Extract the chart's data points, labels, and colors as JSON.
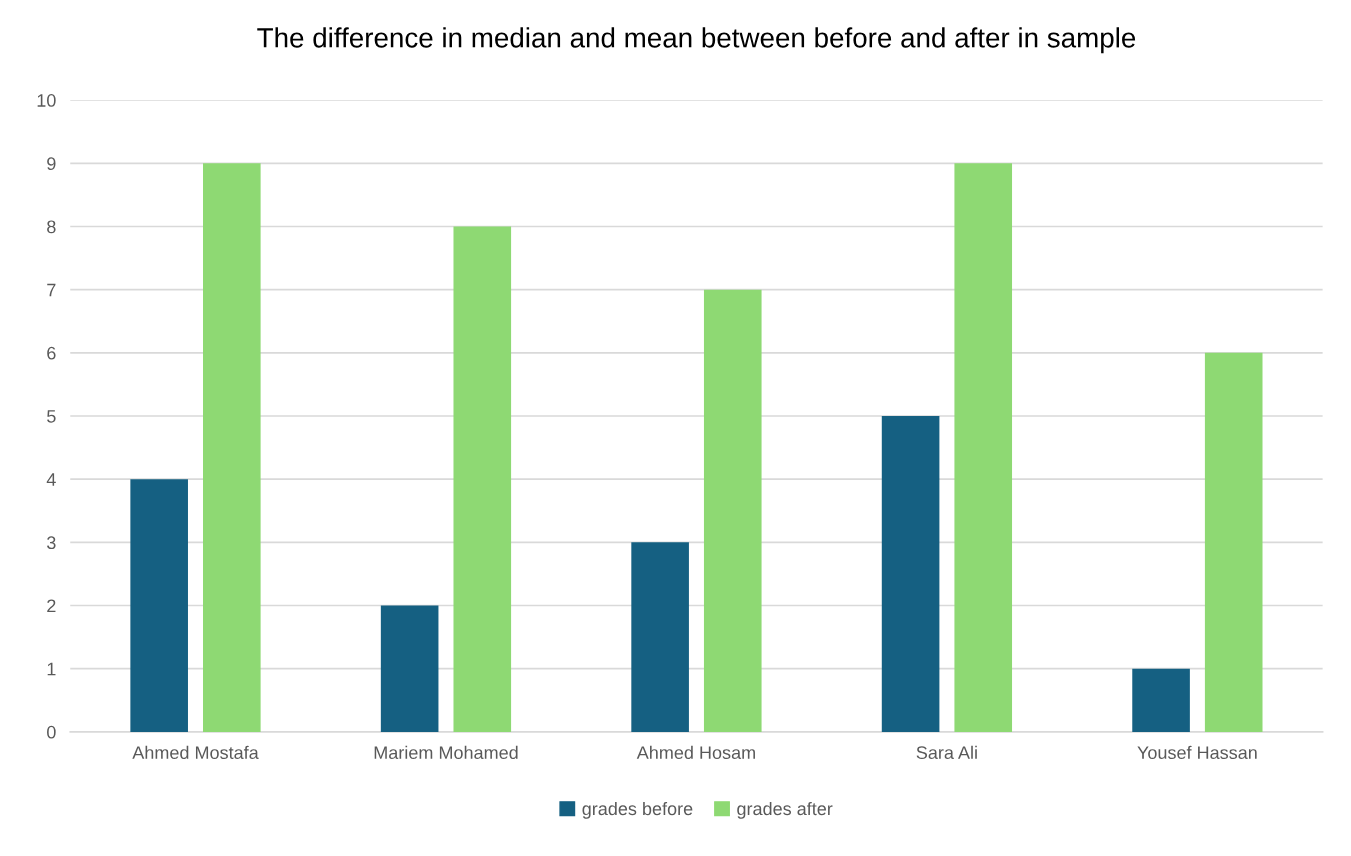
{
  "chart_data": {
    "type": "bar",
    "title": "The difference in median and mean between before and after in sample",
    "categories": [
      "Ahmed Mostafa",
      "Mariem Mohamed",
      "Ahmed Hosam",
      "Sara Ali",
      "Yousef Hassan"
    ],
    "series": [
      {
        "name": "grades before",
        "color": "#156082",
        "values": [
          4,
          2,
          3,
          5,
          1
        ]
      },
      {
        "name": "grades after",
        "color": "#8ed973",
        "values": [
          9,
          8,
          7,
          9,
          6
        ]
      }
    ],
    "ylim": [
      0,
      10
    ],
    "yticks": [
      0,
      1,
      2,
      3,
      4,
      5,
      6,
      7,
      8,
      9,
      10
    ],
    "grid": "y",
    "legend": "bottom"
  }
}
